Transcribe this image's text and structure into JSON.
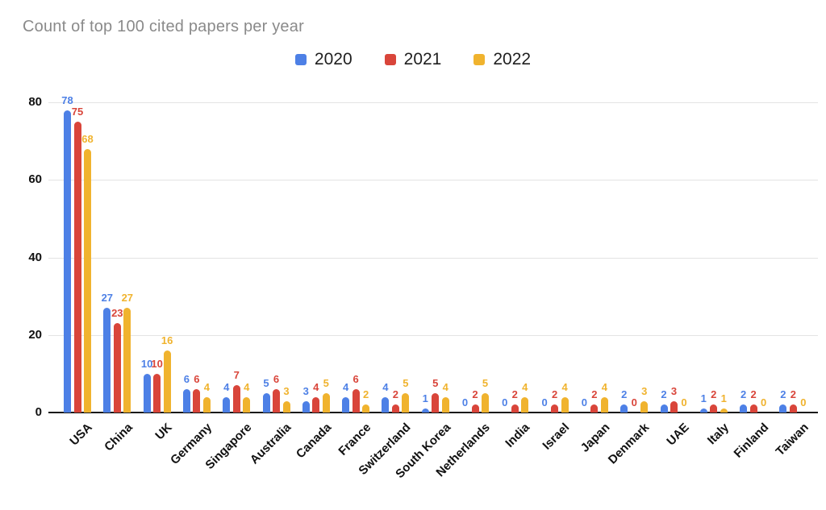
{
  "title": "Count of top 100 cited papers per year",
  "chart_data": {
    "type": "bar",
    "title": "Count of top 100 cited papers per year",
    "xlabel": "",
    "ylabel": "",
    "categories": [
      "USA",
      "China",
      "UK",
      "Germany",
      "Singapore",
      "Australia",
      "Canada",
      "France",
      "Switzerland",
      "South Korea",
      "Netherlands",
      "India",
      "Israel",
      "Japan",
      "Denmark",
      "UAE",
      "Italy",
      "Finland",
      "Taiwan"
    ],
    "series": [
      {
        "name": "2020",
        "color": "#4d80e6",
        "values": [
          78,
          27,
          10,
          6,
          4,
          5,
          3,
          4,
          4,
          1,
          0,
          0,
          0,
          0,
          2,
          2,
          1,
          2,
          2
        ]
      },
      {
        "name": "2021",
        "color": "#d9453a",
        "values": [
          75,
          23,
          10,
          6,
          7,
          6,
          4,
          6,
          2,
          5,
          2,
          2,
          2,
          2,
          0,
          3,
          2,
          2,
          2
        ]
      },
      {
        "name": "2022",
        "color": "#f0b32e",
        "values": [
          68,
          27,
          16,
          4,
          4,
          3,
          5,
          2,
          5,
          4,
          5,
          4,
          4,
          4,
          3,
          0,
          1,
          0,
          0
        ]
      }
    ],
    "y_ticks": [
      0,
      20,
      40,
      60,
      80
    ],
    "ylim": [
      0,
      85
    ],
    "grid": true,
    "legend_position": "top-center",
    "data_labels": true,
    "title_color": "#8a8a8a",
    "gridline_color": "#e3e3e3",
    "axis_color": "#1a1a1a"
  }
}
